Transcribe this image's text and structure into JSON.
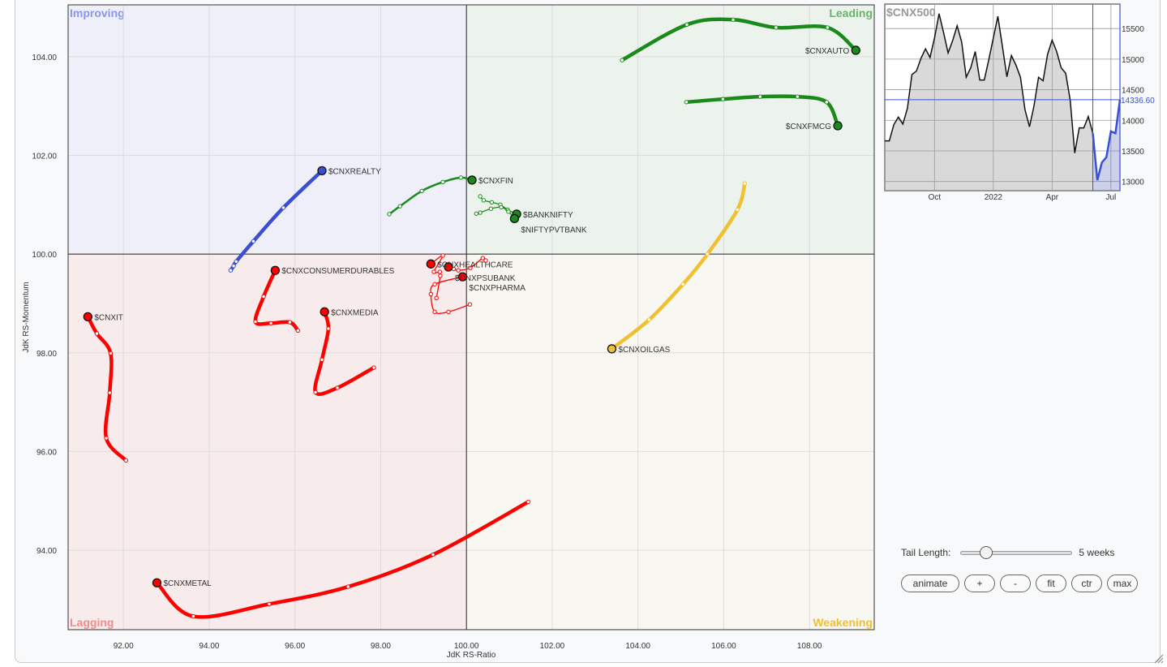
{
  "chart_data": {
    "type": "scatter",
    "subtype": "relative-rotation-graph",
    "xlabel": "JdK RS-Ratio",
    "ylabel": "JdK RS-Momentum",
    "xlim": [
      90.71,
      109.51
    ],
    "ylim": [
      92.39,
      105.05
    ],
    "xticks": [
      92,
      94,
      96,
      98,
      100,
      102,
      104,
      106,
      108
    ],
    "yticks": [
      94,
      96,
      98,
      100,
      102,
      104
    ],
    "xtick_labels": [
      "92.00",
      "94.00",
      "96.00",
      "98.00",
      "100.00",
      "102.00",
      "104.00",
      "106.00",
      "108.00"
    ],
    "ytick_labels": [
      "94.00",
      "96.00",
      "98.00",
      "100.00",
      "102.00",
      "104.00"
    ],
    "grid": true,
    "quadrants": {
      "improving": {
        "label": "Improving",
        "bg": "#eeeff8",
        "color": "#8a96ea",
        "line": "#3a50d0"
      },
      "leading": {
        "label": "Leading",
        "bg": "#ebf3ec",
        "color": "#6cb26c",
        "line": "#1a8a1a"
      },
      "lagging": {
        "label": "Lagging",
        "bg": "#f8ebeb",
        "color": "#f28c8c",
        "line": "#ff0000"
      },
      "weakening": {
        "label": "Weakening",
        "bg": "#f9f7f1",
        "color": "#f0c030",
        "line": "#f0c030"
      }
    },
    "series": [
      {
        "name": "$CNXAUTO",
        "label_side": "left",
        "tail_style": "thick",
        "points": [
          [
            103.63,
            103.93
          ],
          [
            105.14,
            104.65
          ],
          [
            106.22,
            104.75
          ],
          [
            107.22,
            104.59
          ],
          [
            108.42,
            104.59
          ],
          [
            109.08,
            104.13
          ]
        ]
      },
      {
        "name": "$CNXFMCG",
        "label_side": "left",
        "tail_style": "thick",
        "points": [
          [
            105.13,
            103.08
          ],
          [
            105.98,
            103.14
          ],
          [
            106.85,
            103.19
          ],
          [
            107.72,
            103.19
          ],
          [
            108.4,
            103.08
          ],
          [
            108.66,
            102.6
          ]
        ]
      },
      {
        "name": "$CNXREALTY",
        "label_side": "right",
        "tail_style": "thick",
        "points": [
          [
            94.5,
            99.67
          ],
          [
            94.57,
            99.76
          ],
          [
            94.63,
            99.85
          ],
          [
            95.03,
            100.26
          ],
          [
            95.73,
            100.94
          ],
          [
            96.63,
            101.69
          ]
        ]
      },
      {
        "name": "$CNXFIN",
        "label_side": "right",
        "tail_style": "medium",
        "points": [
          [
            98.2,
            100.81
          ],
          [
            98.45,
            100.97
          ],
          [
            98.96,
            101.28
          ],
          [
            99.45,
            101.46
          ],
          [
            99.87,
            101.55
          ],
          [
            100.13,
            101.5
          ]
        ]
      },
      {
        "name": "$BANKNIFTY",
        "label_side": "right",
        "tail_style": "thin",
        "points": [
          [
            100.32,
            101.17
          ],
          [
            100.4,
            101.09
          ],
          [
            100.59,
            101.05
          ],
          [
            100.79,
            101.0
          ],
          [
            100.96,
            100.9
          ],
          [
            101.17,
            100.81
          ]
        ]
      },
      {
        "name": "$NIFTYPVTBANK",
        "label_side": "right",
        "tail_style": "thin",
        "points": [
          [
            100.23,
            100.82
          ],
          [
            100.32,
            100.84
          ],
          [
            100.57,
            100.92
          ],
          [
            100.81,
            100.95
          ],
          [
            100.98,
            100.86
          ],
          [
            101.12,
            100.72
          ]
        ]
      },
      {
        "name": "$CNXHEALTHCARE",
        "label_side": "right",
        "tail_style": "thin",
        "points": [
          [
            99.3,
            99.11
          ],
          [
            99.39,
            99.56
          ],
          [
            99.38,
            99.64
          ],
          [
            99.24,
            99.64
          ],
          [
            99.45,
            99.97
          ],
          [
            99.17,
            99.8
          ]
        ]
      },
      {
        "name": "$CNXPSUBANK",
        "label_side": "right",
        "tail_style": "thin",
        "points": [
          [
            100.45,
            99.87
          ],
          [
            100.38,
            99.92
          ],
          [
            100.09,
            99.72
          ],
          [
            99.81,
            99.67
          ],
          [
            99.7,
            99.7
          ],
          [
            99.58,
            99.74
          ]
        ]
      },
      {
        "name": "$CNXPHARMA",
        "label_side": "right",
        "tail_style": "thin",
        "points": [
          [
            100.08,
            98.98
          ],
          [
            99.58,
            98.83
          ],
          [
            99.26,
            98.83
          ],
          [
            99.17,
            99.19
          ],
          [
            99.26,
            99.39
          ],
          [
            99.91,
            99.54
          ]
        ]
      },
      {
        "name": "$CNXCONSUMERDURABLES",
        "label_side": "right",
        "tail_style": "thick",
        "points": [
          [
            96.07,
            98.45
          ],
          [
            95.88,
            98.62
          ],
          [
            95.44,
            98.6
          ],
          [
            95.08,
            98.63
          ],
          [
            95.27,
            99.14
          ],
          [
            95.54,
            99.67
          ]
        ]
      },
      {
        "name": "$CNXMEDIA",
        "label_side": "right",
        "tail_style": "thick",
        "points": [
          [
            97.84,
            97.7
          ],
          [
            96.99,
            97.29
          ],
          [
            96.48,
            97.2
          ],
          [
            96.63,
            97.86
          ],
          [
            96.78,
            98.49
          ],
          [
            96.69,
            98.83
          ]
        ]
      },
      {
        "name": "$CNXIT",
        "label_side": "right",
        "tail_style": "thick",
        "points": [
          [
            92.06,
            95.82
          ],
          [
            91.6,
            96.27
          ],
          [
            91.68,
            97.19
          ],
          [
            91.7,
            97.99
          ],
          [
            91.38,
            98.39
          ],
          [
            91.17,
            98.73
          ]
        ]
      },
      {
        "name": "$CNXMETAL",
        "label_side": "right",
        "tail_style": "thick",
        "points": [
          [
            101.44,
            94.98
          ],
          [
            99.22,
            93.91
          ],
          [
            97.24,
            93.26
          ],
          [
            95.4,
            92.91
          ],
          [
            93.63,
            92.66
          ],
          [
            92.78,
            93.34
          ]
        ]
      },
      {
        "name": "$CNXOILGAS",
        "label_side": "right",
        "tail_style": "thick",
        "points": [
          [
            106.49,
            101.43
          ],
          [
            106.32,
            100.9
          ],
          [
            105.62,
            100.0
          ],
          [
            105.05,
            99.39
          ],
          [
            104.26,
            98.67
          ],
          [
            103.39,
            98.08
          ]
        ]
      }
    ],
    "benchmark": {
      "type": "area",
      "title": "$CNX500",
      "ylim": [
        12850,
        15900
      ],
      "yticks": [
        13000,
        13500,
        14000,
        14500,
        15000,
        15500
      ],
      "ytick_labels": [
        "13000",
        "13500",
        "14000",
        "14500",
        "15000",
        "15500"
      ],
      "xtick_labels": [
        "Oct",
        "2022",
        "Apr",
        "Jul"
      ],
      "xtick_index": [
        11,
        24,
        37,
        50
      ],
      "last_value_label": "14336.60",
      "last_value": 14336.6,
      "highlight_from_index": 46,
      "values": [
        13664,
        13664,
        13929,
        14053,
        13938,
        14195,
        14748,
        14805,
        15013,
        15168,
        15027,
        15345,
        15743,
        15434,
        15102,
        15301,
        15544,
        15279,
        14704,
        14858,
        15124,
        14659,
        14659,
        14991,
        15345,
        15699,
        15212,
        14712,
        15058,
        14903,
        14704,
        14173,
        13894,
        14239,
        14704,
        14646,
        15080,
        15310,
        15124,
        14858,
        14770,
        14327,
        13465,
        13876,
        13876,
        14062,
        13788,
        13022,
        13310,
        13398,
        13819,
        13788,
        14337
      ]
    }
  },
  "controls": {
    "tail_length_label": "Tail Length:",
    "tail_length_value": "5 weeks",
    "tail_length_weeks": 5,
    "tail_length_fraction": 0.17,
    "buttons": {
      "animate": "animate",
      "plus": "+",
      "minus": "-",
      "fit": "fit",
      "ctr": "ctr",
      "max": "max"
    }
  }
}
